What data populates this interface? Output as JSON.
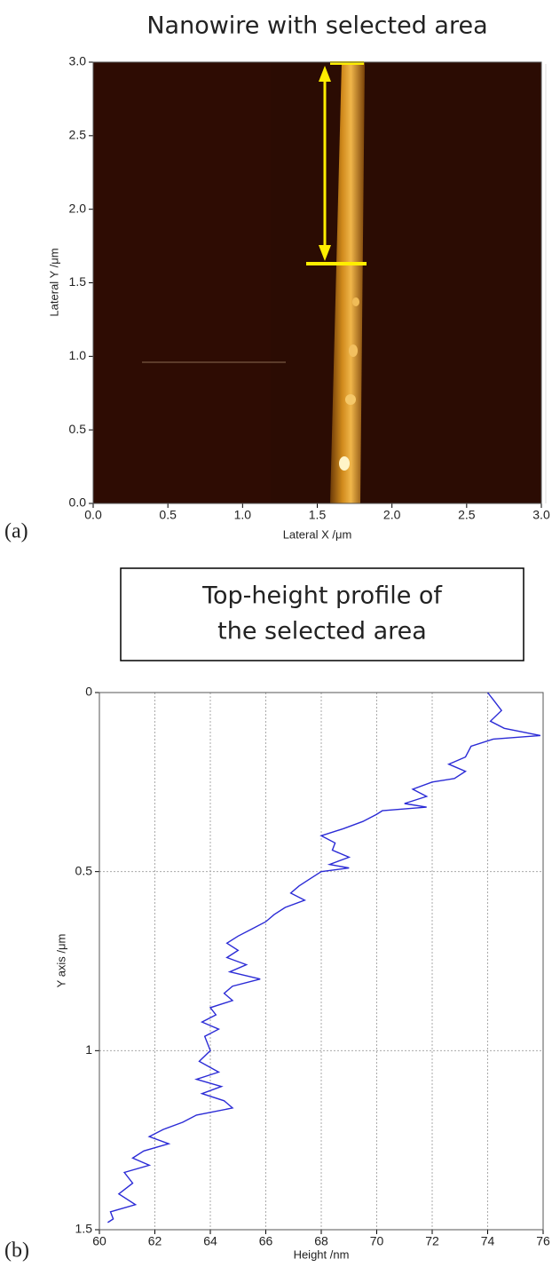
{
  "chart_data": [
    {
      "type": "image",
      "title": "Nanowire with selected area",
      "panel_label": "(a)",
      "x_label": "Lateral X /μm",
      "y_label": "Lateral Y /μm",
      "xlim": [
        0,
        3
      ],
      "ylim": [
        0,
        3
      ],
      "xticks": [
        {
          "value": 0,
          "label": "0.0"
        },
        0.5,
        {
          "value": 1,
          "label": "1.0"
        },
        1.5,
        {
          "value": 2,
          "label": "2.0"
        },
        2.5,
        {
          "value": 3,
          "label": "3.0"
        }
      ],
      "yticks": [
        {
          "value": 0,
          "label": "0.0"
        },
        0.5,
        {
          "value": 1,
          "label": "1.0"
        },
        1.5,
        {
          "value": 2,
          "label": "2.0"
        },
        2.5,
        {
          "value": 3,
          "label": "3.0"
        }
      ]
    },
    {
      "type": "line",
      "title_lines": [
        "Top-height profile of",
        "the selected area"
      ],
      "panel_label": "(b)",
      "x_label": "Height /nm",
      "y_label": "Y axis /μm",
      "xlim": [
        60,
        76
      ],
      "ylim": [
        0,
        1.5
      ],
      "y_inverted": true,
      "grid": true,
      "xticks": [
        60,
        62,
        64,
        66,
        68,
        70,
        72,
        74,
        76
      ],
      "yticks": [
        0,
        0.5,
        1,
        1.5
      ],
      "series": [
        {
          "color": "#2b2bd6",
          "y": [
            0,
            0.02,
            0.05,
            0.08,
            0.1,
            0.12,
            0.13,
            0.15,
            0.18,
            0.2,
            0.22,
            0.24,
            0.25,
            0.27,
            0.29,
            0.31,
            0.32,
            0.33,
            0.34,
            0.36,
            0.38,
            0.4,
            0.42,
            0.44,
            0.46,
            0.48,
            0.49,
            0.5,
            0.52,
            0.54,
            0.56,
            0.58,
            0.6,
            0.62,
            0.64,
            0.66,
            0.68,
            0.7,
            0.72,
            0.74,
            0.76,
            0.78,
            0.8,
            0.82,
            0.84,
            0.86,
            0.88,
            0.9,
            0.92,
            0.94,
            0.96,
            1.0,
            1.03,
            1.06,
            1.08,
            1.1,
            1.12,
            1.14,
            1.16,
            1.18,
            1.2,
            1.22,
            1.24,
            1.26,
            1.28,
            1.3,
            1.32,
            1.34,
            1.37,
            1.4,
            1.43,
            1.45,
            1.47,
            1.48
          ],
          "values": [
            74.0,
            74.2,
            74.5,
            74.1,
            74.6,
            75.9,
            74.2,
            73.4,
            73.2,
            72.6,
            73.2,
            72.8,
            72.0,
            71.3,
            71.8,
            71.0,
            71.8,
            70.2,
            70.0,
            69.5,
            68.8,
            68.0,
            68.5,
            68.4,
            69.0,
            68.3,
            69.0,
            68.0,
            67.6,
            67.2,
            66.9,
            67.4,
            66.7,
            66.3,
            66.0,
            65.5,
            65.0,
            64.6,
            65.0,
            64.6,
            65.3,
            64.7,
            65.8,
            64.8,
            64.5,
            64.8,
            64.0,
            64.2,
            63.7,
            64.3,
            63.8,
            64.0,
            63.6,
            64.3,
            63.5,
            64.4,
            63.7,
            64.5,
            64.8,
            63.5,
            63.0,
            62.3,
            61.8,
            62.5,
            61.6,
            61.2,
            61.8,
            60.9,
            61.2,
            60.7,
            61.3,
            60.4,
            60.5,
            60.3
          ]
        }
      ]
    }
  ]
}
